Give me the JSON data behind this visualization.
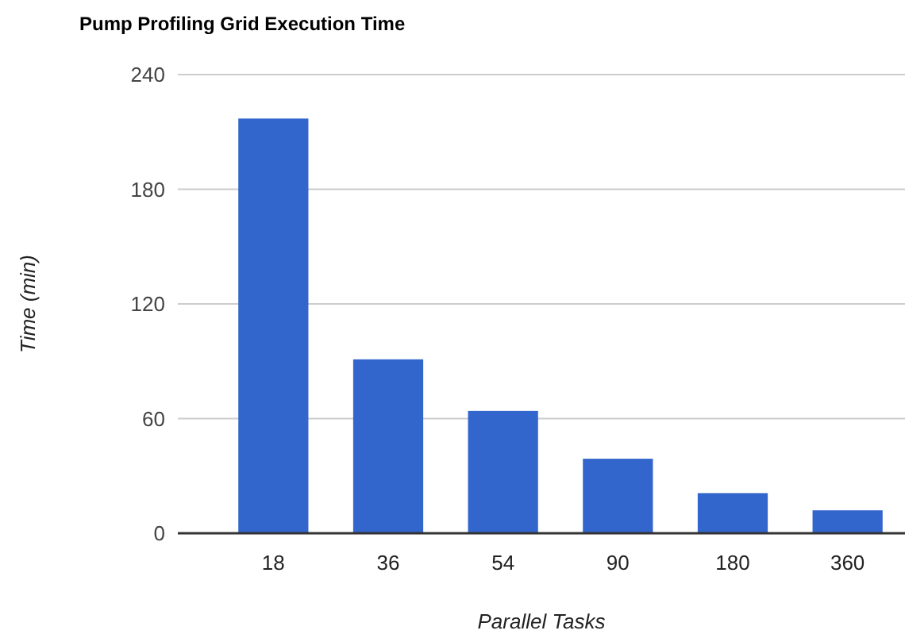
{
  "chart_data": {
    "type": "bar",
    "title": "Pump Profiling Grid Execution Time",
    "xlabel": "Parallel Tasks",
    "ylabel": "Time (min)",
    "categories": [
      "18",
      "36",
      "54",
      "90",
      "180",
      "360"
    ],
    "values": [
      217,
      91,
      64,
      39,
      21,
      12
    ],
    "color": "#3366cc",
    "ylim": [
      0,
      240
    ],
    "yticks": [
      0,
      60,
      120,
      180,
      240
    ],
    "grid": "y"
  }
}
